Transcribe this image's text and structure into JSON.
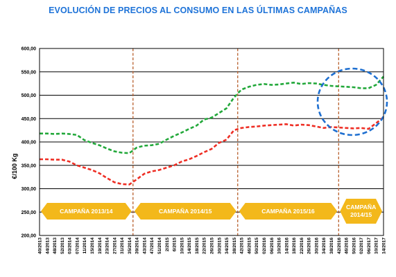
{
  "chart_data": {
    "type": "line",
    "title": "EVOLUCIÓN DE PRECIOS  AL CONSUMO EN LAS  ÚLTIMAS CAMPAÑAS",
    "ylabel": "€/100 Kg",
    "xlabel": "",
    "ylim": [
      200,
      600
    ],
    "ytick_labels": [
      "200,00",
      "250,00",
      "300,00",
      "350,00",
      "400,00",
      "450,00",
      "500,00",
      "550,00",
      "600,00"
    ],
    "x": [
      "40/2013",
      "44/2013",
      "48/2013",
      "52/2013",
      "03/2014",
      "07/2014",
      "11/2014",
      "15/2014",
      "19/2014",
      "23/2014",
      "27/2014",
      "31/2014",
      "35/2014",
      "39/2014",
      "43/2014",
      "47/2014",
      "51/2014",
      "2/2015",
      "6/2015",
      "10/2015",
      "14/2015",
      "18/2015",
      "22/2015",
      "26/2015",
      "30/2015",
      "34/2015",
      "38/2015",
      "42/2015",
      "46/2015",
      "50/2015",
      "02/2016",
      "06/2016",
      "10/2016",
      "14/2016",
      "18/2016",
      "22/2016",
      "26/2016",
      "30/2016",
      "34/2016",
      "38/2016",
      "42/2016",
      "46/2016",
      "50/2016",
      "02/2017",
      "06/2017",
      "10/2017",
      "14/2017"
    ],
    "series": [
      {
        "color": "#22a83a",
        "values": [
          418,
          418,
          417,
          418,
          417,
          415,
          404,
          398,
          393,
          386,
          380,
          377,
          376,
          388,
          392,
          393,
          396,
          405,
          413,
          420,
          428,
          435,
          448,
          452,
          462,
          472,
          495,
          512,
          518,
          522,
          524,
          522,
          523,
          525,
          527,
          524,
          526,
          525,
          522,
          520,
          519,
          518,
          517,
          515,
          515,
          522,
          540
        ]
      },
      {
        "color": "#ee2e24",
        "values": [
          363,
          363,
          362,
          362,
          358,
          350,
          345,
          340,
          333,
          323,
          314,
          310,
          309,
          320,
          332,
          337,
          340,
          345,
          350,
          358,
          363,
          370,
          378,
          385,
          398,
          405,
          425,
          430,
          432,
          433,
          435,
          436,
          437,
          438,
          435,
          437,
          436,
          433,
          430,
          432,
          431,
          430,
          429,
          430,
          428,
          440,
          453
        ]
      }
    ],
    "campaign_labels": [
      {
        "text": "CAMPAÑA 2013/14"
      },
      {
        "text": "CAMPAÑA 2014/15"
      },
      {
        "text": "CAMPAÑA 2015/16"
      },
      {
        "text": [
          "CAMPAÑA",
          "2014/15"
        ]
      }
    ],
    "highlight_color": "#1e6fd0",
    "campaign_color": "#f3b81b",
    "divider_color": "#b8602e",
    "title_color": "#1e73d8",
    "grid": true
  }
}
